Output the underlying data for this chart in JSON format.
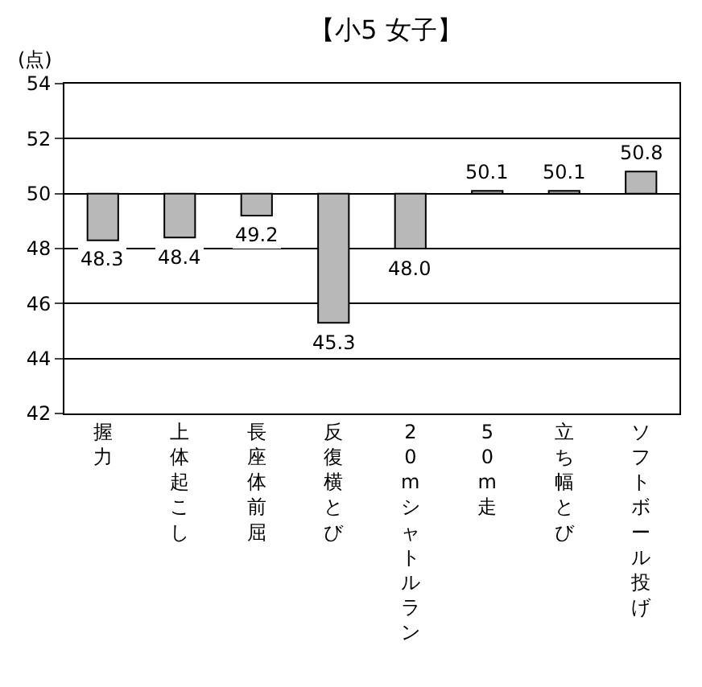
{
  "chart_data": {
    "type": "bar",
    "title": "【小5 女子】",
    "ylabel": "(点)",
    "categories": [
      "握力",
      "上体起こし",
      "長座体前屈",
      "反復横とび",
      "20mシャトルラン",
      "50m走",
      "立ち幅とび",
      "ソフトボール投げ"
    ],
    "base": [
      50,
      50,
      50,
      50,
      50,
      50,
      50,
      50
    ],
    "values": [
      -1.7,
      -1.6,
      -0.8,
      -4.7,
      -2.0,
      0.1,
      0.1,
      0.8
    ],
    "value_labels": [
      "48.3",
      "48.4",
      "49.2",
      "45.3",
      "48.0",
      "50.1",
      "50.1",
      "50.8"
    ],
    "color": "#b8b8b8",
    "ylim": [
      42,
      54
    ],
    "yticks": [
      42,
      44,
      46,
      48,
      50,
      52,
      54
    ],
    "grid": "y"
  }
}
